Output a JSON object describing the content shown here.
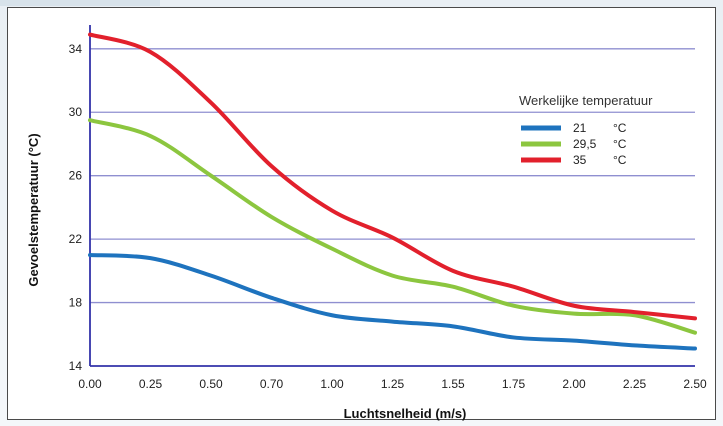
{
  "chart_data": {
    "type": "line",
    "title": "",
    "xlabel": "Luchtsnelheid (m/s)",
    "ylabel": "Gevoelstemperatuur (°C)",
    "x_tick_labels": [
      "0.00",
      "0.25",
      "0.50",
      "0.70",
      "1.00",
      "1.25",
      "1.55",
      "1.75",
      "2.00",
      "2.25",
      "2.50"
    ],
    "y_ticks": [
      14,
      18,
      22,
      26,
      30,
      34
    ],
    "ylim": [
      14,
      35.5
    ],
    "grid": "horizontal",
    "legend": {
      "title": "Werkelijke temperatuur",
      "placement": "top-right",
      "unit": "°C"
    },
    "series": [
      {
        "name": "21",
        "color": "#1e73be",
        "values": [
          21.0,
          20.8,
          19.7,
          18.3,
          17.2,
          16.8,
          16.5,
          15.8,
          15.6,
          15.3,
          15.1
        ]
      },
      {
        "name": "29,5",
        "color": "#8cc63f",
        "values": [
          29.5,
          28.5,
          26.0,
          23.4,
          21.4,
          19.7,
          19.0,
          17.8,
          17.3,
          17.2,
          16.1
        ]
      },
      {
        "name": "35",
        "color": "#e2202c",
        "values": [
          34.9,
          33.8,
          30.6,
          26.6,
          23.8,
          22.1,
          20.0,
          19.0,
          17.8,
          17.4,
          17.0
        ]
      }
    ]
  }
}
